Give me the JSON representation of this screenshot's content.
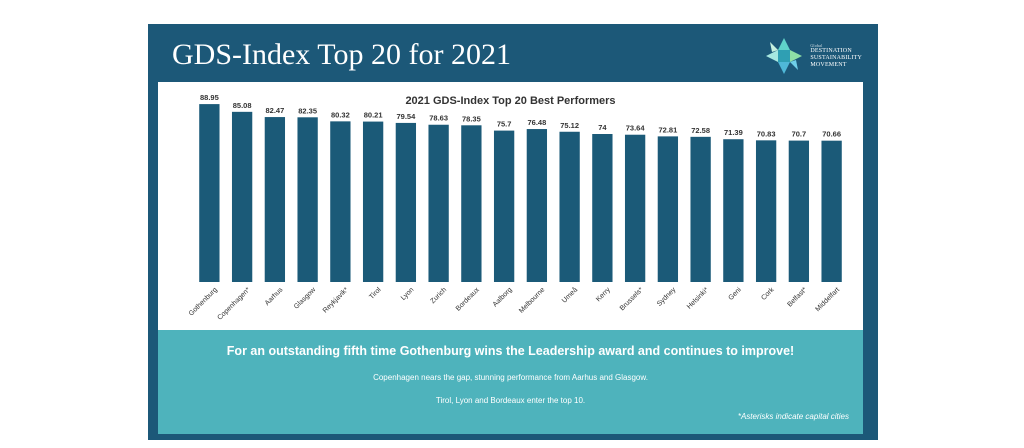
{
  "slide": {
    "title": "GDS-Index Top 20 for 2021",
    "logo": {
      "small_text": "Global",
      "lines": [
        "DESTINATION",
        "SUSTAINABILITY",
        "MOVEMENT"
      ]
    },
    "banner": {
      "headline": "For an outstanding fifth time Gothenburg wins the Leadership award and continues to improve!",
      "line1": "Copenhagen nears the gap, stunning performance from Aarhus and Glasgow.",
      "line2": "Tirol, Lyon and Bordeaux enter the top 10.",
      "note": "*Asterisks indicate capital cities"
    }
  },
  "colors": {
    "background": "#1c5878",
    "bar": "#1b5a78",
    "banner": "#4eb3bc"
  },
  "chart_data": {
    "type": "bar",
    "title": "2021 GDS-Index Top 20 Best Performers",
    "categories": [
      "Gothenburg",
      "Copenhagen*",
      "Aarhus",
      "Glasgow",
      "Reykjavik*",
      "Tirol",
      "Lyon",
      "Zurich",
      "Bordeaux",
      "Aalborg",
      "Melbourne",
      "Umeå",
      "Kerry",
      "Brussels*",
      "Sydney",
      "Helsinki*",
      "Geni",
      "Cork",
      "Belfast*",
      "Middelfart"
    ],
    "values": [
      88.95,
      85.08,
      82.47,
      82.35,
      80.32,
      80.21,
      79.54,
      78.63,
      78.35,
      75.7,
      76.48,
      75.12,
      74,
      73.64,
      72.81,
      72.58,
      71.39,
      70.83,
      70.7,
      70.66
    ],
    "value_labels": [
      "88.95",
      "85.08",
      "82.47",
      "82.35",
      "80.32",
      "80.21",
      "79.54",
      "78.63",
      "78.35",
      "75.7",
      "76.48",
      "75.12",
      "74",
      "73.64",
      "72.81",
      "72.58",
      "71.39",
      "70.83",
      "70.7",
      "70.66"
    ],
    "xlabel": "",
    "ylabel": "",
    "ylim": [
      0,
      90
    ],
    "grid": false,
    "legend": "none"
  }
}
